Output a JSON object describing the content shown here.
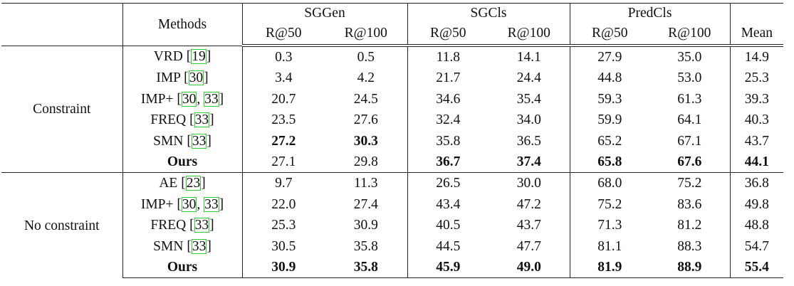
{
  "table": {
    "header": {
      "methods": "Methods",
      "groups": [
        "SGGen",
        "SGCls",
        "PredCls"
      ],
      "metrics": [
        "R@50",
        "R@100",
        "R@50",
        "R@100",
        "R@50",
        "R@100"
      ],
      "mean": "Mean"
    },
    "groups": [
      {
        "label": "Constraint",
        "rows": [
          {
            "method": "VRD",
            "cite": "[19]",
            "values": [
              "0.3",
              "0.5",
              "11.8",
              "14.1",
              "27.9",
              "35.0",
              "14.9"
            ],
            "bold": []
          },
          {
            "method": "IMP",
            "cite": "[30]",
            "values": [
              "3.4",
              "4.2",
              "21.7",
              "24.4",
              "44.8",
              "53.0",
              "25.3"
            ],
            "bold": []
          },
          {
            "method": "IMP+",
            "cite": "[30, 33]",
            "values": [
              "20.7",
              "24.5",
              "34.6",
              "35.4",
              "59.3",
              "61.3",
              "39.3"
            ],
            "bold": []
          },
          {
            "method": "FREQ",
            "cite": "[33]",
            "values": [
              "23.5",
              "27.6",
              "32.4",
              "34.0",
              "59.9",
              "64.1",
              "40.3"
            ],
            "bold": []
          },
          {
            "method": "SMN",
            "cite": "[33]",
            "values": [
              "27.2",
              "30.3",
              "35.8",
              "36.5",
              "65.2",
              "67.1",
              "43.7"
            ],
            "bold": [
              0,
              1
            ]
          },
          {
            "method": "Ours",
            "values": [
              "27.1",
              "29.8",
              "36.7",
              "37.4",
              "65.8",
              "67.6",
              "44.1"
            ],
            "bold": [
              2,
              3,
              4,
              5,
              6
            ],
            "method_bold": true
          }
        ]
      },
      {
        "label": "No constraint",
        "rows": [
          {
            "method": "AE",
            "cite": "[23]",
            "values": [
              "9.7",
              "11.3",
              "26.5",
              "30.0",
              "68.0",
              "75.2",
              "36.8"
            ],
            "bold": []
          },
          {
            "method": "IMP+",
            "cite": "[30, 33]",
            "values": [
              "22.0",
              "27.4",
              "43.4",
              "47.2",
              "75.2",
              "83.6",
              "49.8"
            ],
            "bold": []
          },
          {
            "method": "FREQ",
            "cite": "[33]",
            "values": [
              "25.3",
              "30.9",
              "40.5",
              "43.7",
              "71.3",
              "81.2",
              "48.8"
            ],
            "bold": []
          },
          {
            "method": "SMN",
            "cite": "[33]",
            "values": [
              "30.5",
              "35.8",
              "44.5",
              "47.7",
              "81.1",
              "88.3",
              "54.7"
            ],
            "bold": []
          },
          {
            "method": "Ours",
            "values": [
              "30.9",
              "35.8",
              "45.9",
              "49.0",
              "81.9",
              "88.9",
              "55.4"
            ],
            "bold": [
              0,
              1,
              2,
              3,
              4,
              5,
              6
            ],
            "method_bold": true
          }
        ]
      }
    ]
  }
}
